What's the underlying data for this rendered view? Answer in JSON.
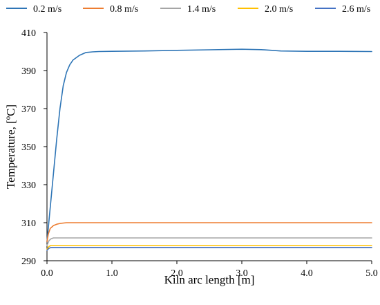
{
  "chart_data": {
    "type": "line",
    "title": "",
    "xlabel": "Kiln arc length [m]",
    "ylabel": "Temperature, [ºC]",
    "xlim": [
      0,
      5
    ],
    "ylim": [
      290,
      410
    ],
    "x_ticks": [
      "0.0",
      "1.0",
      "2.0",
      "3.0",
      "4.0",
      "5.0"
    ],
    "y_ticks": [
      "290",
      "310",
      "330",
      "350",
      "370",
      "390",
      "410"
    ],
    "grid": false,
    "legend_position": "top",
    "series": [
      {
        "name": "0.2 m/s",
        "color": "#2e75b6",
        "x": [
          0,
          0.05,
          0.1,
          0.15,
          0.2,
          0.25,
          0.3,
          0.35,
          0.4,
          0.5,
          0.6,
          0.7,
          0.8,
          1.0,
          1.5,
          2.0,
          2.5,
          3.0,
          3.3,
          3.6,
          4.0,
          4.5,
          5.0
        ],
        "y": [
          300,
          318,
          336,
          354,
          370,
          382,
          389,
          393,
          395.5,
          398,
          399.5,
          399.8,
          400,
          400.1,
          400.3,
          400.6,
          400.9,
          401.2,
          401,
          400.3,
          400.1,
          400.1,
          400
        ]
      },
      {
        "name": "0.8 m/s",
        "color": "#ed7d31",
        "x": [
          0,
          0.02,
          0.05,
          0.1,
          0.15,
          0.2,
          0.3,
          0.5,
          1.0,
          2.0,
          3.0,
          4.0,
          5.0
        ],
        "y": [
          300,
          304,
          307,
          308.5,
          309.2,
          309.6,
          310,
          310,
          310,
          310,
          310,
          310,
          310
        ]
      },
      {
        "name": "1.4 m/s",
        "color": "#a5a5a5",
        "x": [
          0,
          0.03,
          0.06,
          0.1,
          0.2,
          0.5,
          1.0,
          2.0,
          3.0,
          4.0,
          5.0
        ],
        "y": [
          298,
          300.5,
          301.5,
          302,
          302,
          302,
          302,
          302,
          302,
          302,
          302
        ]
      },
      {
        "name": "2.0 m/s",
        "color": "#ffc000",
        "x": [
          0,
          0.03,
          0.06,
          0.1,
          0.2,
          0.5,
          1.0,
          2.0,
          3.0,
          4.0,
          5.0
        ],
        "y": [
          296,
          297.5,
          298,
          298,
          298,
          298,
          298,
          298,
          298,
          298,
          298
        ]
      },
      {
        "name": "2.6 m/s",
        "color": "#4472c4",
        "x": [
          0,
          0.03,
          0.06,
          0.1,
          0.2,
          0.5,
          1.0,
          2.0,
          3.0,
          4.0,
          5.0
        ],
        "y": [
          295.5,
          296.5,
          297,
          297,
          297,
          297,
          297,
          297,
          297,
          297,
          297
        ]
      }
    ]
  }
}
